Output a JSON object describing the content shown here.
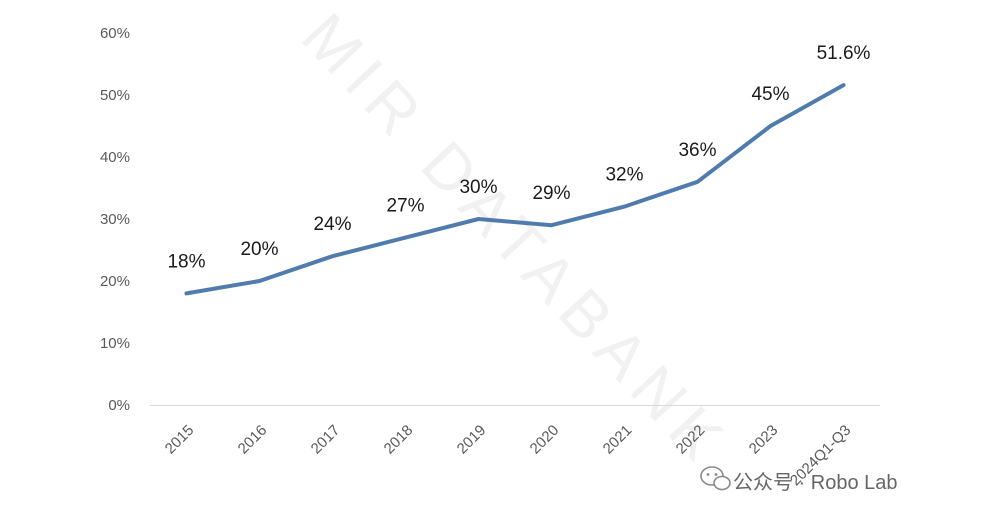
{
  "chart_data": {
    "type": "line",
    "categories": [
      "2015",
      "2016",
      "2017",
      "2018",
      "2019",
      "2020",
      "2021",
      "2022",
      "2023",
      "2024Q1-Q3"
    ],
    "series": [
      {
        "values": [
          18,
          20,
          24,
          27,
          30,
          29,
          32,
          36,
          45,
          51.6
        ],
        "labels": [
          "18%",
          "20%",
          "24%",
          "27%",
          "30%",
          "29%",
          "32%",
          "36%",
          "45%",
          "51.6%"
        ]
      }
    ],
    "y_ticks": [
      "0%",
      "10%",
      "20%",
      "30%",
      "40%",
      "50%",
      "60%"
    ],
    "ylim": [
      0,
      60
    ],
    "grid": false,
    "line_color": "#4f7cad"
  },
  "watermark": "MIR DATABANK",
  "credit": {
    "icon": "wechat-icon",
    "text": "公众号 · Robo Lab"
  }
}
